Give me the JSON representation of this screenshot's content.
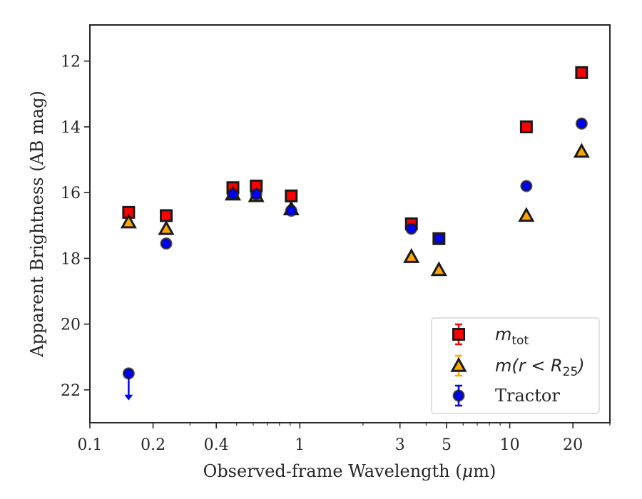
{
  "chart_data": {
    "type": "scatter",
    "xlabel_parts": [
      "Observed-frame Wavelength (",
      "μ",
      "m)"
    ],
    "ylabel": "Apparent Brightness (AB mag)",
    "x_scale": "log",
    "xlim": [
      0.1,
      30
    ],
    "ylim": [
      23.0,
      10.9
    ],
    "y_inverted": true,
    "x_ticks": [
      0.1,
      0.2,
      0.4,
      1,
      3,
      5,
      10,
      20
    ],
    "x_tick_labels": [
      "0.1",
      "0.2",
      "0.4",
      "1",
      "3",
      "5",
      "10",
      "20"
    ],
    "y_ticks": [
      12,
      14,
      16,
      18,
      20,
      22
    ],
    "y_tick_labels": [
      "12",
      "14",
      "16",
      "18",
      "20",
      "22"
    ],
    "grid": false,
    "legend_position": "lower-right",
    "series": [
      {
        "key": "mtot",
        "legend": {
          "main": "m",
          "sub": "tot"
        },
        "marker": "square",
        "color": "#ff0000",
        "edge": "#1a1a1a",
        "points": [
          {
            "x": 0.153,
            "y": 16.6
          },
          {
            "x": 0.231,
            "y": 16.7
          },
          {
            "x": 0.48,
            "y": 15.85
          },
          {
            "x": 0.62,
            "y": 15.8
          },
          {
            "x": 0.91,
            "y": 16.1
          },
          {
            "x": 3.4,
            "y": 16.95
          },
          {
            "x": 4.6,
            "y": 17.4
          },
          {
            "x": 12.0,
            "y": 14.0
          },
          {
            "x": 22.0,
            "y": 12.35
          }
        ]
      },
      {
        "key": "mr25",
        "legend": {
          "main": "m(r < R",
          "sub": "25",
          "tail": ")"
        },
        "marker": "triangle",
        "color": "#ffa500",
        "edge": "#1a1a1a",
        "points": [
          {
            "x": 0.153,
            "y": 16.9
          },
          {
            "x": 0.231,
            "y": 17.1
          },
          {
            "x": 0.48,
            "y": 16.05
          },
          {
            "x": 0.62,
            "y": 16.1
          },
          {
            "x": 0.91,
            "y": 16.5
          },
          {
            "x": 3.4,
            "y": 17.95
          },
          {
            "x": 4.6,
            "y": 18.35
          },
          {
            "x": 12.0,
            "y": 16.7
          },
          {
            "x": 22.0,
            "y": 14.75
          }
        ]
      },
      {
        "key": "tractor",
        "legend": {
          "main": "Tractor"
        },
        "marker": "circle",
        "color": "#0000ff",
        "edge": "#1a1a1a",
        "points": [
          {
            "x": 0.153,
            "y": 21.5,
            "upper_limit": true
          },
          {
            "x": 0.231,
            "y": 17.55
          },
          {
            "x": 0.48,
            "y": 16.05
          },
          {
            "x": 0.62,
            "y": 16.05
          },
          {
            "x": 0.91,
            "y": 16.55
          },
          {
            "x": 3.4,
            "y": 17.1
          },
          {
            "x": 4.6,
            "y": 17.4
          },
          {
            "x": 12.0,
            "y": 15.8
          },
          {
            "x": 22.0,
            "y": 13.9
          }
        ]
      }
    ]
  }
}
